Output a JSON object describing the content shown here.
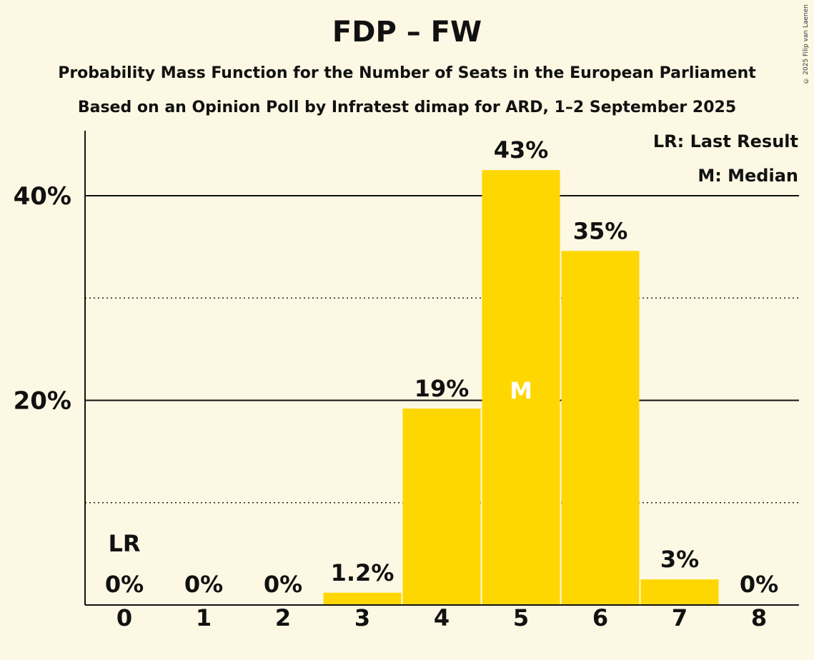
{
  "header": {
    "title": "FDP – FW",
    "subtitle_1": "Probability Mass Function for the Number of Seats in the European Parliament",
    "subtitle_2": "Based on an Opinion Poll by Infratest dimap for ARD, 1–2 September 2025",
    "copyright": "© 2025 Filip van Laenen"
  },
  "legend": {
    "last_result": "LR: Last Result",
    "median": "M: Median"
  },
  "colors": {
    "background": "#fdf8e3",
    "bar": "#ffd700",
    "median_label": "#ffffff",
    "text": "#111111"
  },
  "chart_data": {
    "type": "bar",
    "categories": [
      "0",
      "1",
      "2",
      "3",
      "4",
      "5",
      "6",
      "7",
      "8"
    ],
    "values": [
      0,
      0,
      0,
      1.2,
      19.2,
      42.5,
      34.6,
      2.5,
      0
    ],
    "data_labels": [
      "0%",
      "0%",
      "0%",
      "1.2%",
      "19%",
      "43%",
      "35%",
      "3%",
      "0%"
    ],
    "y_ticks": [
      {
        "value": 20,
        "label": "20%"
      },
      {
        "value": 40,
        "label": "40%"
      }
    ],
    "y_minor_gridlines": [
      10,
      30
    ],
    "ylim": [
      0,
      46.5
    ],
    "last_result": {
      "category": "0",
      "label": "LR"
    },
    "median": {
      "category": "5",
      "label": "M"
    },
    "legend_position": "top-right",
    "grid": true
  }
}
